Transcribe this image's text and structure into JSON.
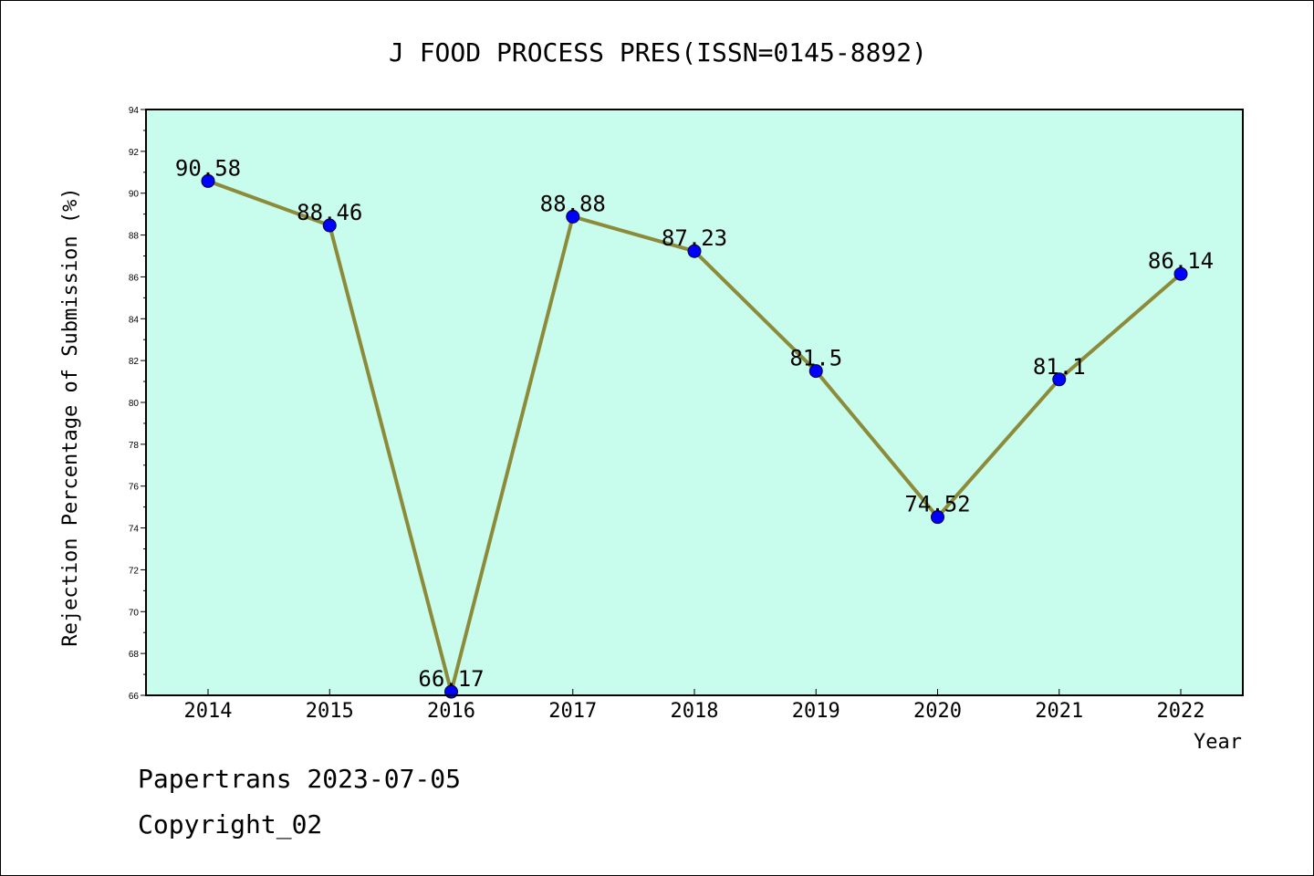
{
  "chart_data": {
    "type": "line",
    "title": "J FOOD PROCESS PRES(ISSN=0145-8892)",
    "xlabel": "Year",
    "ylabel": "Rejection Percentage of Submission (%)",
    "categories": [
      "2014",
      "2015",
      "2016",
      "2017",
      "2018",
      "2019",
      "2020",
      "2021",
      "2022"
    ],
    "values": [
      90.58,
      88.46,
      66.17,
      88.88,
      87.23,
      81.5,
      74.52,
      81.1,
      86.14
    ],
    "data_labels": [
      "90.58",
      "88.46",
      "66.17",
      "88.88",
      "87.23",
      "81.5",
      "74.52",
      "81.1",
      "86.14"
    ],
    "ylim": [
      66,
      94
    ],
    "yticks": [
      66,
      68,
      70,
      72,
      74,
      76,
      78,
      80,
      82,
      84,
      86,
      88,
      90,
      92,
      94
    ],
    "grid": false,
    "legend": "none",
    "colors": {
      "plot_background": "#c8fcec",
      "line": "#8b8b3a",
      "marker": "#0000ff"
    }
  },
  "footer": {
    "source": "Papertrans 2023-07-05",
    "copyright": "Copyright_02"
  }
}
